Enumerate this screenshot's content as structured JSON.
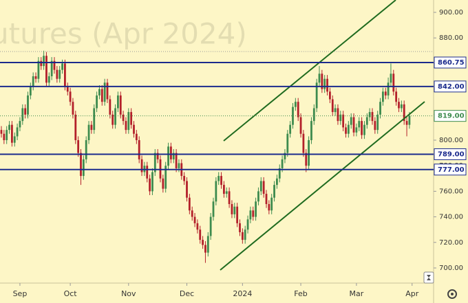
{
  "chart_data": {
    "type": "candlestick",
    "title": "utures (Apr 2024)",
    "open": [
      808,
      805,
      800,
      808,
      812,
      798,
      803,
      810,
      815,
      825,
      820,
      835,
      842,
      850,
      848,
      862,
      858,
      866,
      845,
      850,
      862,
      855,
      848,
      855,
      860,
      842,
      838,
      830,
      820,
      800,
      790,
      772,
      785,
      800,
      812,
      808,
      825,
      835,
      840,
      830,
      845,
      832,
      820,
      812,
      825,
      835,
      820,
      815,
      808,
      822,
      812,
      805,
      800,
      785,
      775,
      780,
      770,
      760,
      775,
      790,
      785,
      770,
      762,
      780,
      795,
      785,
      790,
      778,
      782,
      772,
      768,
      755,
      745,
      740,
      735,
      730,
      722,
      718,
      712,
      725,
      740,
      752,
      768,
      772,
      765,
      758,
      760,
      750,
      742,
      748,
      735,
      728,
      722,
      730,
      738,
      745,
      740,
      752,
      760,
      768,
      758,
      750,
      745,
      755,
      765,
      770,
      778,
      785,
      790,
      805,
      812,
      826,
      830,
      818,
      805,
      790,
      780,
      800,
      815,
      825,
      845,
      852,
      840,
      848,
      838,
      832,
      822,
      825,
      815,
      820,
      810,
      805,
      812,
      818,
      806,
      810,
      815,
      804,
      812,
      818,
      822,
      815,
      808,
      820,
      830,
      838,
      835,
      845,
      852,
      838,
      830,
      825,
      828,
      815,
      812
    ],
    "high": [
      811,
      808,
      811,
      815,
      815,
      806,
      813,
      818,
      828,
      828,
      838,
      845,
      853,
      853,
      865,
      865,
      870,
      869,
      853,
      865,
      865,
      858,
      858,
      863,
      863,
      845,
      841,
      833,
      823,
      803,
      793,
      788,
      803,
      815,
      815,
      828,
      838,
      843,
      843,
      848,
      848,
      835,
      823,
      828,
      838,
      838,
      823,
      818,
      825,
      825,
      815,
      808,
      803,
      788,
      783,
      783,
      773,
      778,
      793,
      793,
      788,
      773,
      783,
      798,
      798,
      793,
      793,
      785,
      785,
      775,
      771,
      758,
      748,
      743,
      738,
      733,
      725,
      721,
      728,
      743,
      755,
      771,
      775,
      775,
      768,
      763,
      763,
      753,
      751,
      751,
      738,
      731,
      733,
      741,
      748,
      748,
      755,
      763,
      771,
      771,
      761,
      753,
      758,
      768,
      773,
      781,
      788,
      793,
      808,
      815,
      829,
      833,
      833,
      821,
      808,
      793,
      803,
      818,
      828,
      848,
      858,
      855,
      851,
      851,
      841,
      835,
      828,
      828,
      823,
      823,
      813,
      815,
      821,
      821,
      813,
      818,
      818,
      815,
      821,
      825,
      825,
      818,
      823,
      833,
      841,
      841,
      849,
      860,
      855,
      841,
      833,
      831,
      831,
      818,
      822
    ],
    "low": [
      802,
      797,
      797,
      805,
      795,
      795,
      800,
      807,
      812,
      817,
      817,
      832,
      839,
      845,
      845,
      855,
      855,
      842,
      842,
      847,
      852,
      845,
      845,
      852,
      839,
      835,
      827,
      817,
      797,
      787,
      765,
      769,
      782,
      797,
      805,
      805,
      822,
      832,
      827,
      827,
      829,
      817,
      809,
      809,
      822,
      817,
      812,
      805,
      805,
      809,
      802,
      797,
      782,
      772,
      772,
      767,
      757,
      757,
      772,
      782,
      767,
      759,
      759,
      777,
      782,
      782,
      775,
      775,
      769,
      765,
      752,
      742,
      737,
      732,
      727,
      719,
      715,
      704,
      709,
      722,
      737,
      749,
      765,
      762,
      755,
      755,
      747,
      739,
      739,
      732,
      725,
      719,
      719,
      727,
      735,
      737,
      737,
      749,
      757,
      755,
      747,
      742,
      742,
      752,
      762,
      767,
      775,
      782,
      787,
      802,
      809,
      823,
      815,
      802,
      787,
      775,
      777,
      797,
      812,
      822,
      842,
      837,
      837,
      835,
      829,
      819,
      819,
      812,
      812,
      807,
      802,
      802,
      809,
      803,
      803,
      807,
      801,
      801,
      809,
      815,
      812,
      805,
      805,
      817,
      827,
      832,
      832,
      842,
      835,
      827,
      822,
      822,
      812,
      803,
      809
    ],
    "close": [
      805,
      800,
      808,
      812,
      798,
      803,
      810,
      815,
      825,
      820,
      835,
      842,
      850,
      848,
      862,
      858,
      866,
      845,
      850,
      862,
      855,
      848,
      855,
      860,
      842,
      838,
      830,
      820,
      800,
      790,
      772,
      785,
      800,
      812,
      808,
      825,
      835,
      840,
      830,
      845,
      832,
      820,
      812,
      825,
      835,
      820,
      815,
      808,
      822,
      812,
      805,
      800,
      785,
      775,
      780,
      770,
      760,
      775,
      790,
      785,
      770,
      762,
      780,
      795,
      785,
      790,
      778,
      782,
      772,
      768,
      755,
      745,
      740,
      735,
      730,
      722,
      718,
      712,
      725,
      740,
      752,
      768,
      772,
      765,
      758,
      760,
      750,
      742,
      748,
      735,
      728,
      722,
      730,
      738,
      745,
      740,
      752,
      760,
      768,
      758,
      750,
      745,
      755,
      765,
      770,
      778,
      785,
      790,
      805,
      812,
      826,
      830,
      818,
      805,
      790,
      780,
      800,
      815,
      825,
      845,
      852,
      840,
      848,
      838,
      832,
      822,
      825,
      815,
      820,
      810,
      805,
      812,
      818,
      806,
      810,
      815,
      804,
      812,
      818,
      822,
      815,
      808,
      820,
      830,
      838,
      835,
      845,
      852,
      838,
      830,
      825,
      828,
      815,
      812,
      819
    ],
    "up_color": "#3d8b4e",
    "down_color": "#b3202a",
    "ylim": [
      700,
      900
    ],
    "yticks": [
      {
        "value": 700,
        "label": "700.00"
      },
      {
        "value": 720,
        "label": "720.00"
      },
      {
        "value": 740,
        "label": "740.00"
      },
      {
        "value": 760,
        "label": "760.00"
      },
      {
        "value": 780,
        "label": "780.00"
      },
      {
        "value": 800,
        "label": "800.00"
      },
      {
        "value": 820,
        "label": "820.00"
      },
      {
        "value": 840,
        "label": "840.00"
      },
      {
        "value": 860,
        "label": "860.00"
      },
      {
        "value": 880,
        "label": "880.00"
      },
      {
        "value": 900,
        "label": "900.00"
      }
    ],
    "xticks": [
      {
        "value": 7,
        "label": "Sep"
      },
      {
        "value": 26,
        "label": "Oct"
      },
      {
        "value": 48,
        "label": "Nov"
      },
      {
        "value": 70,
        "label": "Dec"
      },
      {
        "value": 91,
        "label": "2024"
      },
      {
        "value": 113,
        "label": "Feb"
      },
      {
        "value": 134,
        "label": "Mar"
      },
      {
        "value": 155,
        "label": "Apr"
      }
    ],
    "levels": [
      {
        "value": 860.75,
        "label": "860.75"
      },
      {
        "value": 842,
        "label": "842.00"
      },
      {
        "value": 789,
        "label": "789.00"
      },
      {
        "value": 777,
        "label": "777.00"
      }
    ],
    "level_color": "#1a2a8c",
    "last_price": {
      "value": 819,
      "label": "819.00"
    },
    "last_color": "#3d8b4e"
  }
}
